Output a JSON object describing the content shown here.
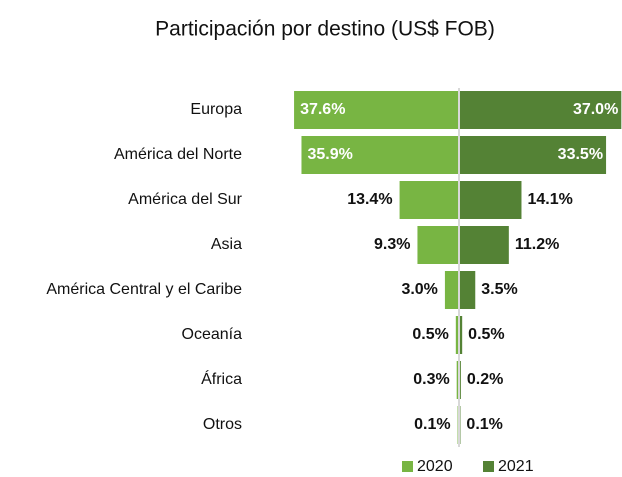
{
  "chart_data": {
    "type": "butterfly",
    "title": "Participación por destino (US$ FOB)",
    "categories": [
      "Europa",
      "América del Norte",
      "América del Sur",
      "Asia",
      "América Central y el Caribe",
      "Oceanía",
      "África",
      "Otros"
    ],
    "series": [
      {
        "name": "2020",
        "color": "#78b543",
        "values": [
          37.6,
          35.9,
          13.4,
          9.3,
          3.0,
          0.5,
          0.3,
          0.1
        ],
        "value_labels": [
          "37.6%",
          "35.9%",
          "13.4%",
          "9.3%",
          "3.0%",
          "0.5%",
          "0.3%",
          "0.1%"
        ]
      },
      {
        "name": "2021",
        "color": "#548235",
        "values": [
          37.0,
          33.5,
          14.1,
          11.2,
          3.5,
          0.5,
          0.2,
          0.1
        ],
        "value_labels": [
          "37.0%",
          "33.5%",
          "14.1%",
          "11.2%",
          "3.5%",
          "0.5%",
          "0.2%",
          "0.1%"
        ]
      }
    ]
  }
}
